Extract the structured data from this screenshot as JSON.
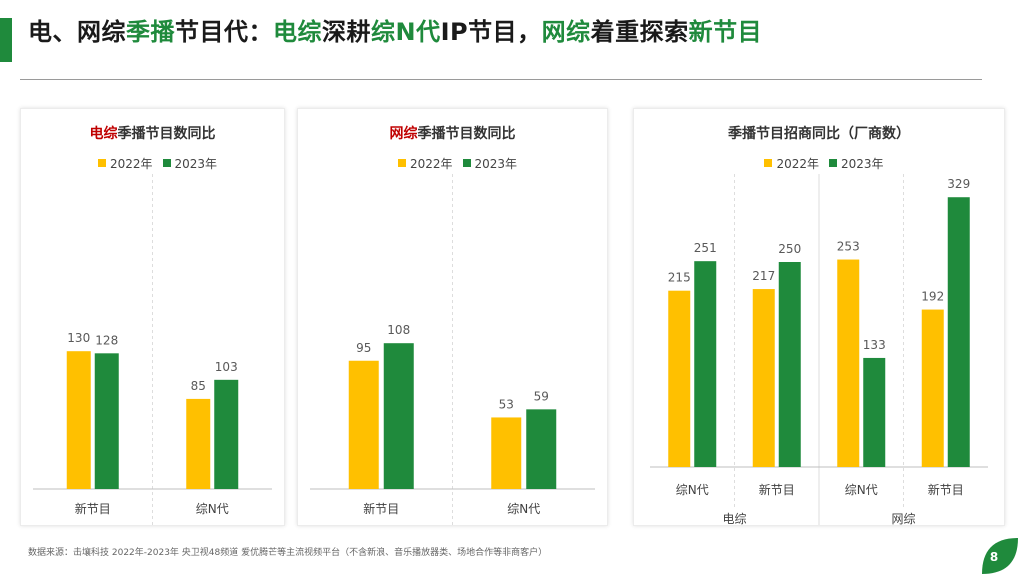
{
  "header": {
    "title_parts": [
      {
        "text": "电、网综",
        "green": false
      },
      {
        "text": "季播",
        "green": true
      },
      {
        "text": "节目代：",
        "green": false
      },
      {
        "text": "电综",
        "green": true
      },
      {
        "text": "深耕",
        "green": false
      },
      {
        "text": "综N代",
        "green": true
      },
      {
        "text": "IP节目，",
        "green": false
      },
      {
        "text": "网综",
        "green": true
      },
      {
        "text": "着重探索",
        "green": false
      },
      {
        "text": "新节目",
        "green": true
      }
    ]
  },
  "colors": {
    "y2022": "#ffc000",
    "y2023": "#1f8a3c",
    "accent": "#1f8a3c",
    "red": "#c00000"
  },
  "legend": {
    "a": "2022年",
    "b": "2023年"
  },
  "chart_data": [
    {
      "type": "bar",
      "title_red": "电综",
      "title_rest": "季播节目数同比",
      "categories": [
        "新节目",
        "综N代"
      ],
      "series": [
        {
          "name": "2022年",
          "values": [
            130,
            85
          ]
        },
        {
          "name": "2023年",
          "values": [
            128,
            103
          ]
        }
      ]
    },
    {
      "type": "bar",
      "title_red": "网综",
      "title_rest": "季播节目数同比",
      "categories": [
        "新节目",
        "综N代"
      ],
      "series": [
        {
          "name": "2022年",
          "values": [
            95,
            53
          ]
        },
        {
          "name": "2023年",
          "values": [
            108,
            59
          ]
        }
      ]
    },
    {
      "type": "bar",
      "title_red": "",
      "title_rest": "季播节目招商同比（厂商数）",
      "categories": [
        "综N代",
        "新节目",
        "综N代",
        "新节目"
      ],
      "groups": [
        "电综",
        "网综"
      ],
      "series": [
        {
          "name": "2022年",
          "values": [
            215,
            217,
            253,
            192
          ]
        },
        {
          "name": "2023年",
          "values": [
            251,
            250,
            133,
            329
          ]
        }
      ]
    }
  ],
  "footer": {
    "source": "数据来源：击壤科技 2022年-2023年 央卫视48频道 爱优腾芒等主流视频平台（不含新浪、音乐播放器类、场地合作等非商客户）",
    "page": "8"
  }
}
